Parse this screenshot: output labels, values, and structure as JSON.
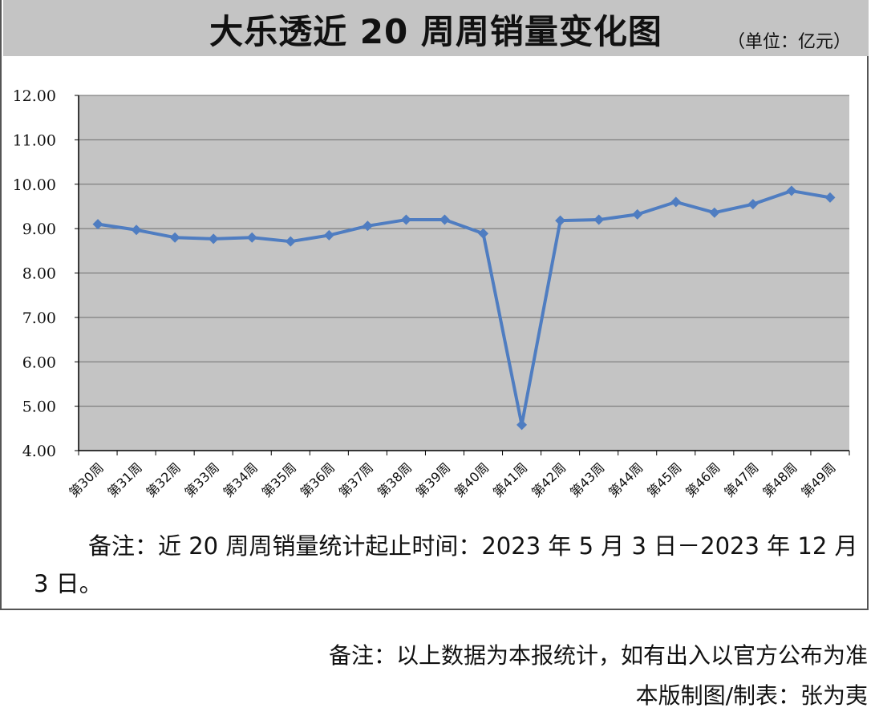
{
  "title": "大乐透近 20 周周销量变化图",
  "unit": "（单位：亿元）",
  "chart_note": "备注：近 20 周周销量统计起止时间：2023 年 5 月 3 日－2023 年 12 月 3 日。",
  "footer_note": "备注：以上数据为本报统计，如有出入以官方公布为准",
  "credit": "本版制图/制表：张为夷",
  "colors": {
    "line": "#4f7dc1",
    "plot_bg": "#c4c4c4",
    "grid": "#6e6e6e"
  },
  "chart_data": {
    "type": "line",
    "title": "大乐透近 20 周周销量变化图",
    "categories": [
      "第30周",
      "第31周",
      "第32周",
      "第33周",
      "第34周",
      "第35周",
      "第36周",
      "第37周",
      "第38周",
      "第39周",
      "第40周",
      "第41周",
      "第42周",
      "第43周",
      "第44周",
      "第45周",
      "第46周",
      "第47周",
      "第48周",
      "第49周"
    ],
    "series": [
      {
        "values": [
          9.1,
          8.97,
          8.8,
          8.77,
          8.8,
          8.71,
          8.85,
          9.06,
          9.2,
          9.2,
          8.89,
          4.58,
          9.18,
          9.2,
          9.32,
          9.6,
          9.36,
          9.55,
          9.85,
          9.7
        ]
      }
    ],
    "yticks": [
      "12.00",
      "11.00",
      "10.00",
      "9.00",
      "8.00",
      "7.00",
      "6.00",
      "5.00",
      "4.00"
    ],
    "ylim": [
      4,
      12
    ],
    "xlabel": "",
    "ylabel": "",
    "grid": true,
    "marker": "diamond"
  }
}
